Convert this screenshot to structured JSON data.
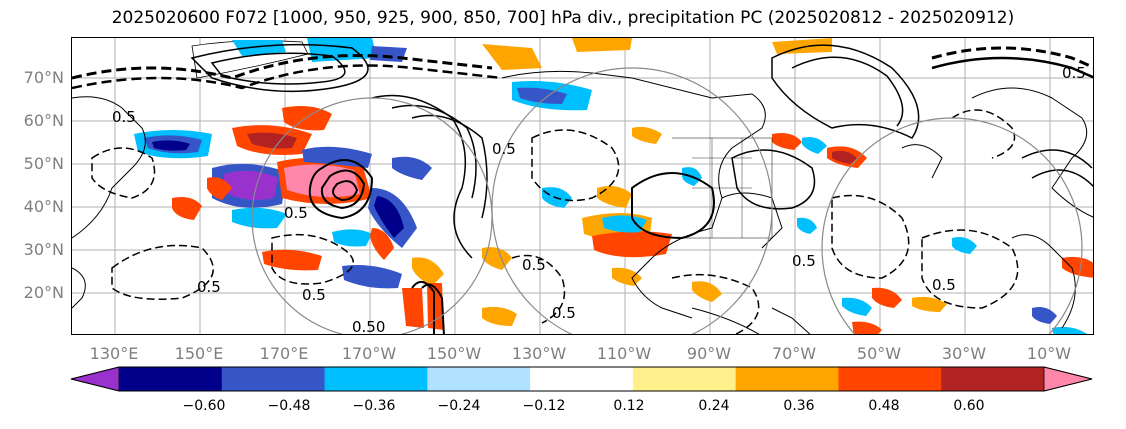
{
  "title": "2025020600 F072 [1000, 950, 925, 900, 850, 700] hPa div., precipitation PC (2025020812 - 2025020912)",
  "lat_labels": [
    "70°N",
    "60°N",
    "50°N",
    "40°N",
    "30°N",
    "20°N"
  ],
  "lon_labels": [
    "130°E",
    "150°E",
    "170°E",
    "170°W",
    "150°W",
    "130°W",
    "110°W",
    "90°W",
    "70°W",
    "50°W",
    "30°W",
    "10°W"
  ],
  "colorbar": {
    "colors": [
      "#9932cc",
      "#00008b",
      "#3656c8",
      "#00bfff",
      "#b0e2ff",
      "#ffffff",
      "#fff08c",
      "#ffa500",
      "#ff4500",
      "#b22222",
      "#ff88aa"
    ],
    "tick_labels": [
      "−0.60",
      "−0.48",
      "−0.36",
      "−0.24",
      "−0.12",
      "0.12",
      "0.24",
      "0.36",
      "0.48",
      "0.60"
    ]
  },
  "contour_labels": [
    "0.5",
    "0.5",
    "0.5",
    "0.5",
    "0.5",
    "0.5",
    "0.5",
    "0.50",
    "0.5",
    "0.5",
    "0.5"
  ]
}
